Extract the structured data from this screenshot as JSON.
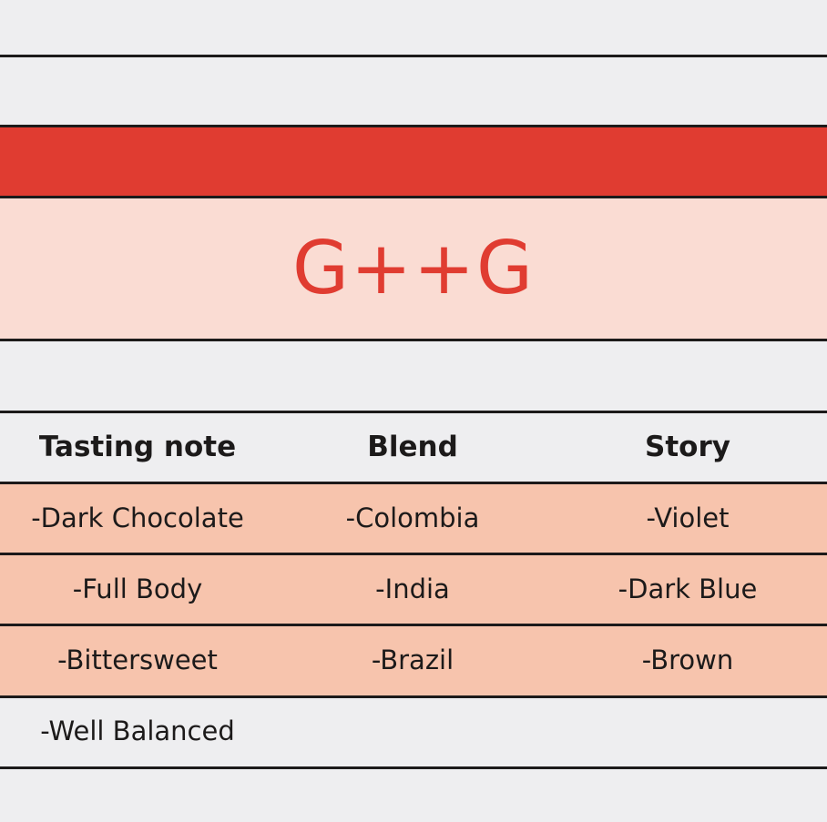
{
  "header": {
    "logo": "G++G"
  },
  "table": {
    "columns": [
      "Tasting note",
      "Blend",
      "Story"
    ],
    "rows": [
      [
        "-Dark Chocolate",
        "-Colombia",
        "-Violet"
      ],
      [
        "-Full Body",
        "-India",
        "-Dark Blue"
      ],
      [
        "-Bittersweet",
        "-Brazil",
        "-Brown"
      ],
      [
        "-Well Balanced"
      ]
    ]
  }
}
